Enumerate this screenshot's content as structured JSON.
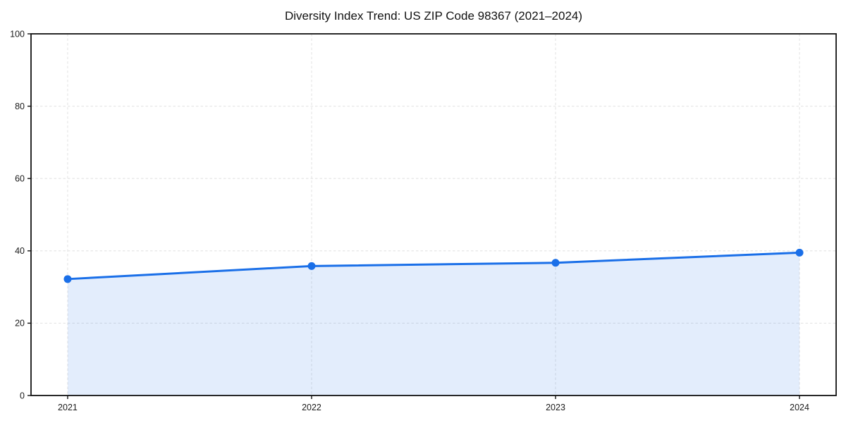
{
  "page": {
    "background": "#ffffff"
  },
  "chart_data": {
    "type": "area",
    "title": "Diversity Index Trend: US ZIP Code 98367 (2021–2024)",
    "categories": [
      "2021",
      "2022",
      "2023",
      "2024"
    ],
    "series": [
      {
        "name": "Diversity Index",
        "values": [
          32.2,
          35.8,
          36.7,
          39.5
        ]
      }
    ],
    "xlabel": "",
    "ylabel": "",
    "ylim": [
      0,
      100
    ],
    "yticks": [
      0,
      20,
      40,
      60,
      80,
      100
    ],
    "grid": "dashed-both-axes",
    "legend": "none",
    "marker": "circle",
    "colors": {
      "line": "#1a6fe8",
      "marker": "#1a6fe8",
      "fill": "rgba(26,111,232,0.12)",
      "grid": "#e4e4e4",
      "spine": "#111111",
      "tick": "#111111",
      "tick_label": "#1a1a1a",
      "title": "#111111"
    }
  }
}
